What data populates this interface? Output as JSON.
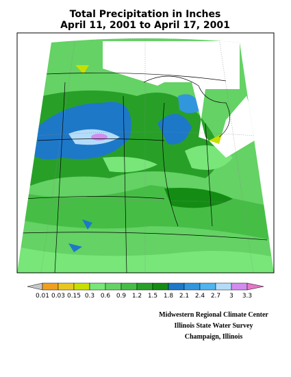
{
  "header": {
    "title": "Total Precipitation in Inches",
    "subtitle": "April 11, 2001  to April 17, 2001"
  },
  "legend": {
    "labels": [
      "0.01",
      "0.03",
      "0.15",
      "0.3",
      "0.6",
      "0.9",
      "1.2",
      "1.5",
      "1.8",
      "2.1",
      "2.4",
      "2.7",
      "3",
      "3.3"
    ]
  },
  "credits": [
    "Midwestern Regional Climate Center",
    "Illinois State Water Survey",
    "Champaign, Illinois"
  ]
}
